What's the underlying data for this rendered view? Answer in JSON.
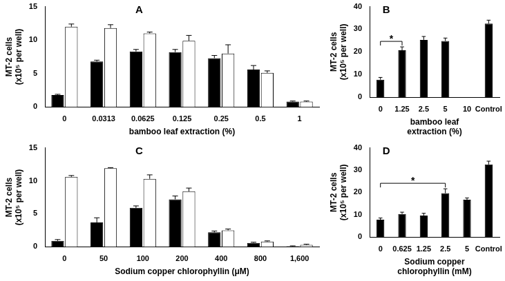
{
  "chart_data": [
    {
      "type": "bar",
      "title": "A",
      "x_label": "bamboo leaf extraction (%)",
      "y_label": [
        "MT-2 cells",
        "(x10⁵ per well)"
      ],
      "categories": [
        "0",
        "0.0313",
        "0.0625",
        "0.125",
        "0.25",
        "0.5",
        "1"
      ],
      "series": [
        {
          "color": "#000000",
          "values": [
            1.8,
            6.8,
            8.3,
            8.2,
            7.3,
            5.6,
            0.8
          ],
          "errors": [
            0.1,
            0.2,
            0.3,
            0.4,
            0.4,
            0.6,
            0.1
          ]
        },
        {
          "color": "#ffffff",
          "values": [
            12.0,
            11.8,
            11.0,
            9.9,
            8.0,
            5.1,
            0.8
          ],
          "errors": [
            0.4,
            0.5,
            0.2,
            0.8,
            1.3,
            0.3,
            0.1
          ]
        }
      ],
      "ylim": [
        0,
        15
      ],
      "yticks": [
        0,
        5,
        10,
        15
      ],
      "grid": false
    },
    {
      "type": "bar",
      "title": "B",
      "x_label": [
        "bamboo leaf",
        "extraction (%)"
      ],
      "y_label": [
        "MT-2 cells",
        "(x10⁵ per well)"
      ],
      "categories": [
        "0",
        "1.25",
        "2.5",
        "5",
        "10",
        "Control"
      ],
      "series": [
        {
          "color": "#000000",
          "values": [
            7.7,
            20.7,
            25.3,
            24.8,
            0,
            32.5
          ],
          "errors": [
            1.0,
            1.5,
            1.5,
            1.3,
            0,
            1.5
          ]
        }
      ],
      "annotations": [
        {
          "from": "0",
          "to": "1.25",
          "text": "*"
        }
      ],
      "ylim": [
        0,
        40
      ],
      "yticks": [
        0,
        10,
        20,
        30,
        40
      ],
      "grid": false
    },
    {
      "type": "bar",
      "title": "C",
      "x_label": "Sodium copper chlorophyllin (μM)",
      "y_label": [
        "MT-2 cells",
        "(x10⁵ per well)"
      ],
      "categories": [
        "0",
        "50",
        "100",
        "200",
        "400",
        "800",
        "1,600"
      ],
      "series": [
        {
          "color": "#000000",
          "values": [
            0.9,
            3.7,
            5.9,
            7.2,
            2.2,
            0.6,
            0.1
          ],
          "errors": [
            0.2,
            0.7,
            0.3,
            0.5,
            0.2,
            0.1,
            0.05
          ]
        },
        {
          "color": "#ffffff",
          "values": [
            10.6,
            11.9,
            10.3,
            8.4,
            2.5,
            0.8,
            0.3
          ],
          "errors": [
            0.2,
            0.1,
            0.6,
            0.5,
            0.2,
            0.1,
            0.1
          ]
        }
      ],
      "ylim": [
        0,
        15
      ],
      "yticks": [
        0,
        5,
        10,
        15
      ],
      "grid": false
    },
    {
      "type": "bar",
      "title": "D",
      "x_label": [
        "Sodium copper",
        "chlorophyllin (mM)"
      ],
      "y_label": [
        "MT-2 cells",
        "(x10⁵ per well)"
      ],
      "categories": [
        "0",
        "0.625",
        "1.25",
        "2.5",
        "5",
        "Control"
      ],
      "series": [
        {
          "color": "#000000",
          "values": [
            7.7,
            10.3,
            9.6,
            19.6,
            16.7,
            32.5
          ],
          "errors": [
            0.8,
            0.8,
            1.0,
            2.0,
            0.8,
            1.5
          ]
        }
      ],
      "annotations": [
        {
          "from": "0",
          "to": "2.5",
          "text": "*"
        }
      ],
      "ylim": [
        0,
        40
      ],
      "yticks": [
        0,
        10,
        20,
        30,
        40
      ],
      "grid": false
    }
  ]
}
